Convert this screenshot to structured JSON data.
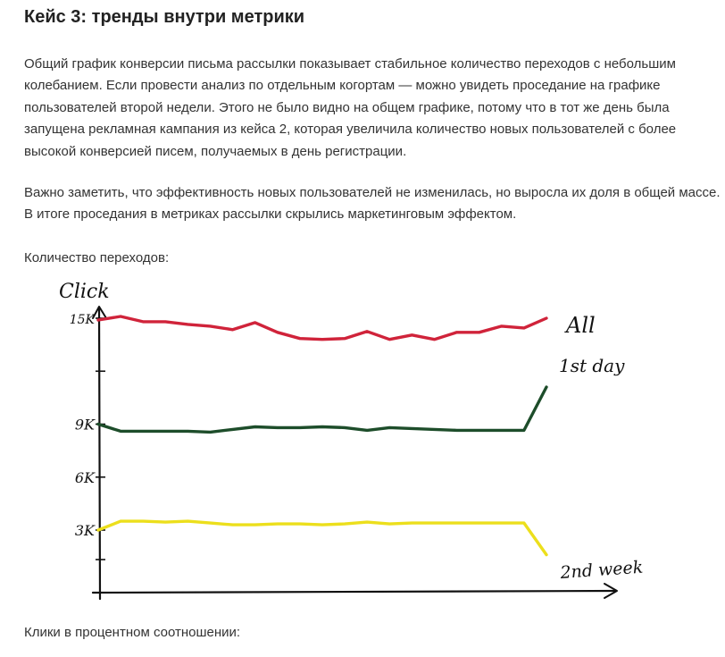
{
  "article": {
    "title": "Кейс 3: тренды внутри метрики",
    "paragraph1": "Общий график конверсии письма рассылки показывает стабильное количество переходов с небольшим колебанием. Если провести анализ по отдельным когортам — можно увидеть проседание на графике пользователей второй недели. Этого не было видно на общем графике, потому что в тот же день была запущена рекламная кампания из кейса 2, которая увеличила количество новых пользователей с более высокой конверсией писем, получаемых в день регистрации.",
    "paragraph2": "Важно заметить, что эффективность новых пользователей не изменилась, но выросла их доля в общей массе. В итоге проседания в метриках рассылки скрылись маркетинговым эффектом.",
    "chart1_caption": "Количество переходов:",
    "chart2_caption": "Клики в процентном соотношении:"
  },
  "chart_data": {
    "type": "line",
    "title": "",
    "ylabel": "Click",
    "xlabel": "",
    "ylim": [
      0,
      16000
    ],
    "yticks": [
      {
        "value": 3000,
        "label": "3K"
      },
      {
        "value": 6000,
        "label": "6K"
      },
      {
        "value": 9000,
        "label": "9K"
      },
      {
        "value": 15000,
        "label": "15K"
      }
    ],
    "x": [
      0,
      1,
      2,
      3,
      4,
      5,
      6,
      7,
      8,
      9,
      10,
      11,
      12,
      13,
      14,
      15,
      16,
      17,
      18,
      19,
      20
    ],
    "grid": false,
    "legend": "inline-right",
    "series": [
      {
        "name": "All",
        "color": "#d0233a",
        "values": [
          14900,
          15100,
          14800,
          14800,
          14650,
          14550,
          14350,
          14750,
          14200,
          13850,
          13800,
          13850,
          14250,
          13800,
          14050,
          13800,
          14200,
          14200,
          14550,
          14450,
          15000
        ]
      },
      {
        "name": "1st day",
        "color": "#1d4d2a",
        "values": [
          9000,
          8600,
          8600,
          8600,
          8600,
          8550,
          8700,
          8850,
          8800,
          8800,
          8850,
          8800,
          8650,
          8800,
          8750,
          8700,
          8650,
          8650,
          8650,
          8650,
          11100
        ]
      },
      {
        "name": "2nd week",
        "color": "#ecdf1c",
        "values": [
          3000,
          3500,
          3500,
          3450,
          3500,
          3400,
          3300,
          3300,
          3350,
          3350,
          3300,
          3350,
          3450,
          3350,
          3400,
          3400,
          3400,
          3400,
          3400,
          3400,
          1600
        ]
      }
    ]
  }
}
